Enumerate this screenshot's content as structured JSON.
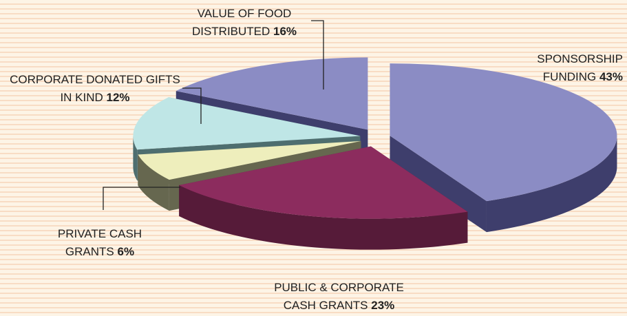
{
  "chart_data": {
    "type": "pie3d",
    "categories": [
      "SPONSORSHIP FUNDING",
      "PUBLIC & CORPORATE CASH GRANTS",
      "PRIVATE CASH GRANTS",
      "CORPORATE DONATED GIFTS IN KIND",
      "VALUE OF FOOD DISTRIBUTED"
    ],
    "values": [
      43,
      23,
      6,
      12,
      16
    ],
    "value_labels": [
      "43%",
      "23%",
      "6%",
      "12%",
      "16%"
    ],
    "colors": [
      "#8b8cc4",
      "#8c2c5e",
      "#eeeebc",
      "#bfe6e6",
      "#8b8cc4"
    ],
    "side_colors": [
      "#3e3e6c",
      "#561b39",
      "#66674f",
      "#4e6e6f",
      "#3e3e6c"
    ]
  }
}
